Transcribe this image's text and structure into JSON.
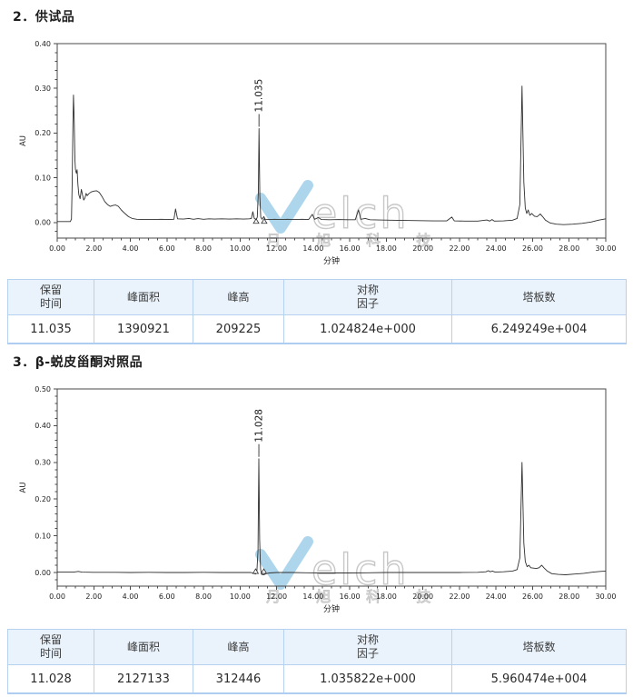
{
  "page": {
    "background": "#ffffff"
  },
  "sections": [
    {
      "title": "2．供试品"
    },
    {
      "title": "3．β-蜕皮甾酮对照品"
    }
  ],
  "watermark": {
    "latin_text": "elch",
    "cn_text": "月 旭 科 技",
    "check_color": "#92c8e6",
    "outline_color": "#c8c8c8"
  },
  "colors": {
    "curve": "#2f2f2f",
    "frame": "#4a4a4a",
    "table_border": "#b7d2ef",
    "table_header_bg": "#eaf3fc"
  },
  "chart_data": [
    {
      "type": "line",
      "xlabel": "分钟",
      "ylabel": "AU",
      "xlim": [
        0,
        30
      ],
      "ylim": [
        -0.035,
        0.4
      ],
      "x_tick_labels": [
        "0.00",
        "2.00",
        "4.00",
        "6.00",
        "8.00",
        "10.00",
        "12.00",
        "14.00",
        "16.00",
        "18.00",
        "20.00",
        "22.00",
        "24.00",
        "26.00",
        "28.00",
        "30.00"
      ],
      "y_tick_labels": [
        "0.00",
        "0.10",
        "0.20",
        "0.30",
        "0.40"
      ],
      "x_minor_step": 0.5,
      "y_minor_step": 0.02,
      "grid": false,
      "peak_annotations": [
        {
          "label": "11.035",
          "x": 11.035,
          "y": 0.21
        }
      ],
      "integration_marks": [
        10.88,
        11.32
      ],
      "points": [
        [
          0,
          0.002
        ],
        [
          0.72,
          0.002
        ],
        [
          0.78,
          0.008
        ],
        [
          0.82,
          0.09
        ],
        [
          0.86,
          0.22
        ],
        [
          0.89,
          0.285
        ],
        [
          0.93,
          0.23
        ],
        [
          0.97,
          0.14
        ],
        [
          1.0,
          0.118
        ],
        [
          1.05,
          0.11
        ],
        [
          1.09,
          0.118
        ],
        [
          1.13,
          0.085
        ],
        [
          1.18,
          0.062
        ],
        [
          1.25,
          0.053
        ],
        [
          1.32,
          0.074
        ],
        [
          1.38,
          0.062
        ],
        [
          1.45,
          0.05
        ],
        [
          1.52,
          0.055
        ],
        [
          1.58,
          0.065
        ],
        [
          1.64,
          0.06
        ],
        [
          1.72,
          0.064
        ],
        [
          1.85,
          0.068
        ],
        [
          2.0,
          0.07
        ],
        [
          2.15,
          0.071
        ],
        [
          2.3,
          0.067
        ],
        [
          2.45,
          0.058
        ],
        [
          2.6,
          0.047
        ],
        [
          2.75,
          0.04
        ],
        [
          2.9,
          0.036
        ],
        [
          3.05,
          0.038
        ],
        [
          3.2,
          0.039
        ],
        [
          3.35,
          0.036
        ],
        [
          3.5,
          0.028
        ],
        [
          3.7,
          0.02
        ],
        [
          3.9,
          0.013
        ],
        [
          4.1,
          0.009
        ],
        [
          4.35,
          0.007
        ],
        [
          4.7,
          0.0065
        ],
        [
          5.2,
          0.0065
        ],
        [
          5.7,
          0.007
        ],
        [
          6.1,
          0.0065
        ],
        [
          6.38,
          0.007
        ],
        [
          6.47,
          0.03
        ],
        [
          6.58,
          0.008
        ],
        [
          6.9,
          0.0075
        ],
        [
          7.2,
          0.009
        ],
        [
          7.45,
          0.007
        ],
        [
          7.7,
          0.0085
        ],
        [
          8.0,
          0.007
        ],
        [
          8.3,
          0.008
        ],
        [
          8.6,
          0.0075
        ],
        [
          9.0,
          0.008
        ],
        [
          9.4,
          0.0075
        ],
        [
          9.8,
          0.008
        ],
        [
          10.2,
          0.0075
        ],
        [
          10.5,
          0.008
        ],
        [
          10.62,
          0.009
        ],
        [
          10.7,
          0.024
        ],
        [
          10.78,
          0.009
        ],
        [
          10.88,
          0.006
        ],
        [
          10.94,
          0.012
        ],
        [
          11.0,
          0.07
        ],
        [
          11.035,
          0.21
        ],
        [
          11.08,
          0.06
        ],
        [
          11.13,
          0.012
        ],
        [
          11.2,
          0.007
        ],
        [
          11.3,
          0.013
        ],
        [
          11.38,
          0.007
        ],
        [
          11.6,
          0.0065
        ],
        [
          11.9,
          0.007
        ],
        [
          12.2,
          0.0065
        ],
        [
          12.6,
          0.007
        ],
        [
          13.0,
          0.0065
        ],
        [
          13.4,
          0.007
        ],
        [
          13.75,
          0.0065
        ],
        [
          13.95,
          0.018
        ],
        [
          14.08,
          0.007
        ],
        [
          14.28,
          0.011
        ],
        [
          14.45,
          0.0065
        ],
        [
          14.9,
          0.006
        ],
        [
          15.4,
          0.0065
        ],
        [
          15.9,
          0.006
        ],
        [
          16.3,
          0.006
        ],
        [
          16.48,
          0.028
        ],
        [
          16.6,
          0.007
        ],
        [
          16.85,
          0.009
        ],
        [
          17.1,
          0.006
        ],
        [
          17.6,
          0.0055
        ],
        [
          18.2,
          0.005
        ],
        [
          19.0,
          0.0045
        ],
        [
          19.8,
          0.004
        ],
        [
          20.6,
          0.0035
        ],
        [
          21.3,
          0.0035
        ],
        [
          21.58,
          0.012
        ],
        [
          21.72,
          0.0035
        ],
        [
          22.3,
          0.003
        ],
        [
          23.0,
          0.003
        ],
        [
          23.5,
          0.0055
        ],
        [
          23.65,
          0.003
        ],
        [
          23.78,
          0.0065
        ],
        [
          23.9,
          0.003
        ],
        [
          24.4,
          0.0035
        ],
        [
          24.9,
          0.005
        ],
        [
          25.15,
          0.009
        ],
        [
          25.3,
          0.04
        ],
        [
          25.42,
          0.305
        ],
        [
          25.52,
          0.09
        ],
        [
          25.6,
          0.032
        ],
        [
          25.68,
          0.02
        ],
        [
          25.76,
          0.028
        ],
        [
          25.85,
          0.016
        ],
        [
          25.95,
          0.02
        ],
        [
          26.1,
          0.014
        ],
        [
          26.25,
          0.013
        ],
        [
          26.42,
          0.019
        ],
        [
          26.55,
          0.013
        ],
        [
          26.7,
          0.005
        ],
        [
          26.95,
          -0.001
        ],
        [
          27.3,
          -0.004
        ],
        [
          27.7,
          -0.005
        ],
        [
          28.2,
          -0.004
        ],
        [
          28.7,
          -0.002
        ],
        [
          29.2,
          0.001
        ],
        [
          29.6,
          0.005
        ],
        [
          30,
          0.008
        ]
      ]
    },
    {
      "type": "line",
      "xlabel": "分钟",
      "ylabel": "AU",
      "xlim": [
        0,
        30
      ],
      "ylim": [
        -0.037,
        0.5
      ],
      "x_tick_labels": [
        "0.00",
        "2.00",
        "4.00",
        "6.00",
        "8.00",
        "10.00",
        "12.00",
        "14.00",
        "16.00",
        "18.00",
        "20.00",
        "22.00",
        "24.00",
        "26.00",
        "28.00",
        "30.00"
      ],
      "y_tick_labels": [
        "0.00",
        "0.10",
        "0.20",
        "0.30",
        "0.40",
        "0.50"
      ],
      "x_minor_step": 0.5,
      "y_minor_step": 0.02,
      "grid": false,
      "peak_annotations": [
        {
          "label": "11.028",
          "x": 11.028,
          "y": 0.31
        }
      ],
      "integration_marks": [
        10.85,
        11.3
      ],
      "points": [
        [
          0,
          0.001
        ],
        [
          0.9,
          0.001
        ],
        [
          1.15,
          0.003
        ],
        [
          1.35,
          0.001
        ],
        [
          2.0,
          0.0005
        ],
        [
          3.0,
          0.0005
        ],
        [
          4.0,
          0
        ],
        [
          5.0,
          0.0005
        ],
        [
          6.0,
          0
        ],
        [
          7.0,
          0
        ],
        [
          8.0,
          0.0005
        ],
        [
          9.0,
          0
        ],
        [
          10.0,
          0
        ],
        [
          10.6,
          0
        ],
        [
          10.75,
          -0.002
        ],
        [
          10.85,
          -0.004
        ],
        [
          10.92,
          0.005
        ],
        [
          10.98,
          0.06
        ],
        [
          11.028,
          0.31
        ],
        [
          11.07,
          0.09
        ],
        [
          11.12,
          0.01
        ],
        [
          11.18,
          -0.005
        ],
        [
          11.3,
          -0.006
        ],
        [
          11.42,
          -0.003
        ],
        [
          11.6,
          -0.001
        ],
        [
          12.0,
          0
        ],
        [
          12.8,
          0
        ],
        [
          13.6,
          -0.0005
        ],
        [
          14.4,
          -0.001
        ],
        [
          15.2,
          -0.001
        ],
        [
          16.0,
          -0.001
        ],
        [
          17.0,
          -0.0005
        ],
        [
          18.0,
          0
        ],
        [
          19.0,
          0
        ],
        [
          20.0,
          0
        ],
        [
          21.0,
          0
        ],
        [
          22.0,
          0
        ],
        [
          23.0,
          0.0005
        ],
        [
          23.45,
          0.002
        ],
        [
          23.58,
          0.005
        ],
        [
          23.68,
          0.002
        ],
        [
          23.8,
          0.004
        ],
        [
          23.95,
          0.001
        ],
        [
          24.4,
          0.002
        ],
        [
          24.9,
          0.004
        ],
        [
          25.15,
          0.008
        ],
        [
          25.3,
          0.04
        ],
        [
          25.42,
          0.3
        ],
        [
          25.52,
          0.08
        ],
        [
          25.6,
          0.03
        ],
        [
          25.7,
          0.016
        ],
        [
          25.8,
          0.02
        ],
        [
          25.9,
          0.013
        ],
        [
          26.05,
          0.012
        ],
        [
          26.2,
          0.011
        ],
        [
          26.35,
          0.013
        ],
        [
          26.5,
          0.02
        ],
        [
          26.62,
          0.013
        ],
        [
          26.8,
          0.004
        ],
        [
          27.05,
          -0.003
        ],
        [
          27.4,
          -0.005
        ],
        [
          27.8,
          -0.006
        ],
        [
          28.3,
          -0.004
        ],
        [
          28.8,
          -0.002
        ],
        [
          29.3,
          0.001
        ],
        [
          29.7,
          0.003
        ],
        [
          30,
          0.004
        ]
      ]
    }
  ],
  "tables": [
    {
      "headers": [
        [
          "保留",
          "时间"
        ],
        [
          "峰面积"
        ],
        [
          "峰高"
        ],
        [
          "对称",
          "因子"
        ],
        [
          "塔板数"
        ]
      ],
      "rows": [
        [
          "11.035",
          "1390921",
          "209225",
          "1.024824e+000",
          "6.249249e+004"
        ]
      ]
    },
    {
      "headers": [
        [
          "保留",
          "时间"
        ],
        [
          "峰面积"
        ],
        [
          "峰高"
        ],
        [
          "对称",
          "因子"
        ],
        [
          "塔板数"
        ]
      ],
      "rows": [
        [
          "11.028",
          "2127133",
          "312446",
          "1.035822e+000",
          "5.960474e+004"
        ]
      ]
    }
  ]
}
